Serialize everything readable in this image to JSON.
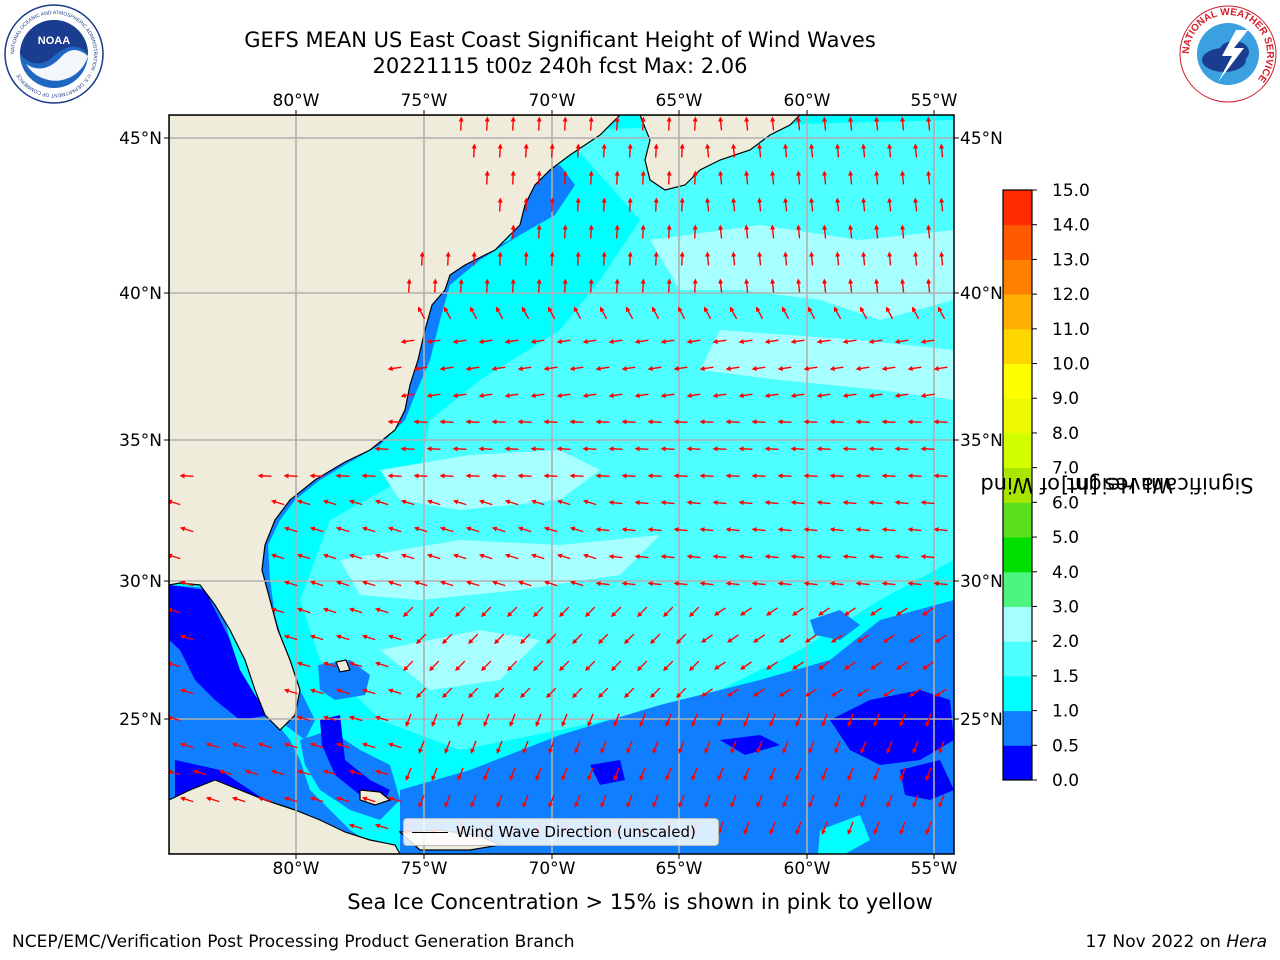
{
  "title_line1": "GEFS MEAN US East Coast Significant Height of Wind Waves",
  "title_line2": "20221115 t00z 240h fcst   Max: 2.06",
  "logos": {
    "left": {
      "text": "NOAA",
      "ring_text": "NATIONAL OCEANIC AND ATMOSPHERIC ADMINISTRATION · U.S. DEPARTMENT OF COMMERCE"
    },
    "right": {
      "ring_text": "NATIONAL WEATHER SERVICE"
    }
  },
  "map": {
    "lon_labels": [
      "80°W",
      "75°W",
      "70°W",
      "65°W",
      "60°W",
      "55°W"
    ],
    "lat_labels": [
      "45°N",
      "40°N",
      "35°N",
      "30°N",
      "25°N"
    ],
    "lon_range": [
      -85,
      -54.3
    ],
    "lat_range": [
      20,
      46
    ],
    "grid": true,
    "land_color": "#efecdb",
    "ocean_colors": {
      "band_0_0.5": "#0000ff",
      "band_0.5_1.0": "#0f7fff",
      "band_1.0_1.5": "#00ffff",
      "band_1.5_2.0": "#4dffff",
      "band_2.0_3.0": "#a8ffff"
    },
    "arrow_color": "#ff0000"
  },
  "legend": {
    "label": "Wind Wave Direction (unscaled)"
  },
  "colorbar": {
    "label_line1": "Significant Height of Wind",
    "label_line2": "Waves [m]",
    "ticks": [
      "0.0",
      "0.5",
      "1.0",
      "1.5",
      "2.0",
      "3.0",
      "4.0",
      "5.0",
      "6.0",
      "7.0",
      "8.0",
      "9.0",
      "10.0",
      "11.0",
      "12.0",
      "13.0",
      "14.0",
      "15.0"
    ],
    "colors": [
      "#0000ff",
      "#0f7fff",
      "#00ffff",
      "#4dffff",
      "#a8ffff",
      "#4df580",
      "#00e000",
      "#5ae01e",
      "#a8e600",
      "#d2ff00",
      "#ecf900",
      "#ffff00",
      "#ffd700",
      "#ffb000",
      "#ff8000",
      "#ff5a00",
      "#ff2a00"
    ]
  },
  "caption": "Sea Ice Concentration > 15% is shown in pink to yellow",
  "footer_left": "NCEP/EMC/Verification Post Processing Product Generation Branch",
  "footer_right_prefix": "17 Nov 2022 on ",
  "footer_right_machine": "Hera"
}
